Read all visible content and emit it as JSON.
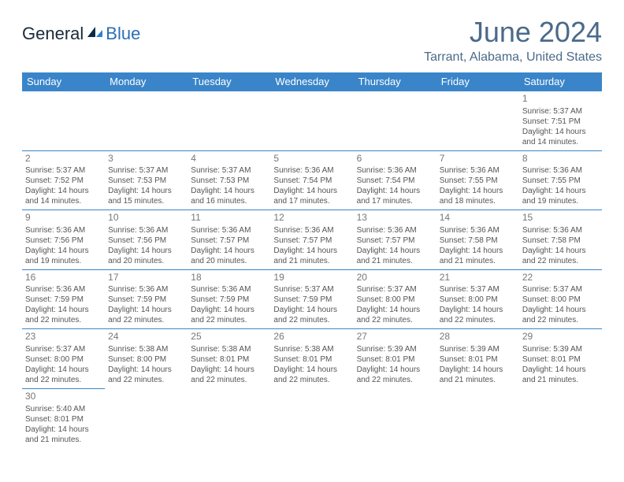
{
  "logo": {
    "text_dark": "General",
    "text_blue": "Blue"
  },
  "title": "June 2024",
  "location": "Tarrant, Alabama, United States",
  "colors": {
    "header_bg": "#3a85c9",
    "header_fg": "#ffffff",
    "border": "#3a85c9",
    "title_color": "#4a6a8a",
    "text_color": "#555555"
  },
  "day_headers": [
    "Sunday",
    "Monday",
    "Tuesday",
    "Wednesday",
    "Thursday",
    "Friday",
    "Saturday"
  ],
  "weeks": [
    [
      null,
      null,
      null,
      null,
      null,
      null,
      {
        "n": "1",
        "sr": "5:37 AM",
        "ss": "7:51 PM",
        "dl": "14 hours and 14 minutes."
      }
    ],
    [
      {
        "n": "2",
        "sr": "5:37 AM",
        "ss": "7:52 PM",
        "dl": "14 hours and 14 minutes."
      },
      {
        "n": "3",
        "sr": "5:37 AM",
        "ss": "7:53 PM",
        "dl": "14 hours and 15 minutes."
      },
      {
        "n": "4",
        "sr": "5:37 AM",
        "ss": "7:53 PM",
        "dl": "14 hours and 16 minutes."
      },
      {
        "n": "5",
        "sr": "5:36 AM",
        "ss": "7:54 PM",
        "dl": "14 hours and 17 minutes."
      },
      {
        "n": "6",
        "sr": "5:36 AM",
        "ss": "7:54 PM",
        "dl": "14 hours and 17 minutes."
      },
      {
        "n": "7",
        "sr": "5:36 AM",
        "ss": "7:55 PM",
        "dl": "14 hours and 18 minutes."
      },
      {
        "n": "8",
        "sr": "5:36 AM",
        "ss": "7:55 PM",
        "dl": "14 hours and 19 minutes."
      }
    ],
    [
      {
        "n": "9",
        "sr": "5:36 AM",
        "ss": "7:56 PM",
        "dl": "14 hours and 19 minutes."
      },
      {
        "n": "10",
        "sr": "5:36 AM",
        "ss": "7:56 PM",
        "dl": "14 hours and 20 minutes."
      },
      {
        "n": "11",
        "sr": "5:36 AM",
        "ss": "7:57 PM",
        "dl": "14 hours and 20 minutes."
      },
      {
        "n": "12",
        "sr": "5:36 AM",
        "ss": "7:57 PM",
        "dl": "14 hours and 21 minutes."
      },
      {
        "n": "13",
        "sr": "5:36 AM",
        "ss": "7:57 PM",
        "dl": "14 hours and 21 minutes."
      },
      {
        "n": "14",
        "sr": "5:36 AM",
        "ss": "7:58 PM",
        "dl": "14 hours and 21 minutes."
      },
      {
        "n": "15",
        "sr": "5:36 AM",
        "ss": "7:58 PM",
        "dl": "14 hours and 22 minutes."
      }
    ],
    [
      {
        "n": "16",
        "sr": "5:36 AM",
        "ss": "7:59 PM",
        "dl": "14 hours and 22 minutes."
      },
      {
        "n": "17",
        "sr": "5:36 AM",
        "ss": "7:59 PM",
        "dl": "14 hours and 22 minutes."
      },
      {
        "n": "18",
        "sr": "5:36 AM",
        "ss": "7:59 PM",
        "dl": "14 hours and 22 minutes."
      },
      {
        "n": "19",
        "sr": "5:37 AM",
        "ss": "7:59 PM",
        "dl": "14 hours and 22 minutes."
      },
      {
        "n": "20",
        "sr": "5:37 AM",
        "ss": "8:00 PM",
        "dl": "14 hours and 22 minutes."
      },
      {
        "n": "21",
        "sr": "5:37 AM",
        "ss": "8:00 PM",
        "dl": "14 hours and 22 minutes."
      },
      {
        "n": "22",
        "sr": "5:37 AM",
        "ss": "8:00 PM",
        "dl": "14 hours and 22 minutes."
      }
    ],
    [
      {
        "n": "23",
        "sr": "5:37 AM",
        "ss": "8:00 PM",
        "dl": "14 hours and 22 minutes."
      },
      {
        "n": "24",
        "sr": "5:38 AM",
        "ss": "8:00 PM",
        "dl": "14 hours and 22 minutes."
      },
      {
        "n": "25",
        "sr": "5:38 AM",
        "ss": "8:01 PM",
        "dl": "14 hours and 22 minutes."
      },
      {
        "n": "26",
        "sr": "5:38 AM",
        "ss": "8:01 PM",
        "dl": "14 hours and 22 minutes."
      },
      {
        "n": "27",
        "sr": "5:39 AM",
        "ss": "8:01 PM",
        "dl": "14 hours and 22 minutes."
      },
      {
        "n": "28",
        "sr": "5:39 AM",
        "ss": "8:01 PM",
        "dl": "14 hours and 21 minutes."
      },
      {
        "n": "29",
        "sr": "5:39 AM",
        "ss": "8:01 PM",
        "dl": "14 hours and 21 minutes."
      }
    ],
    [
      {
        "n": "30",
        "sr": "5:40 AM",
        "ss": "8:01 PM",
        "dl": "14 hours and 21 minutes."
      },
      null,
      null,
      null,
      null,
      null,
      null
    ]
  ],
  "labels": {
    "sunrise": "Sunrise:",
    "sunset": "Sunset:",
    "daylight": "Daylight:"
  }
}
